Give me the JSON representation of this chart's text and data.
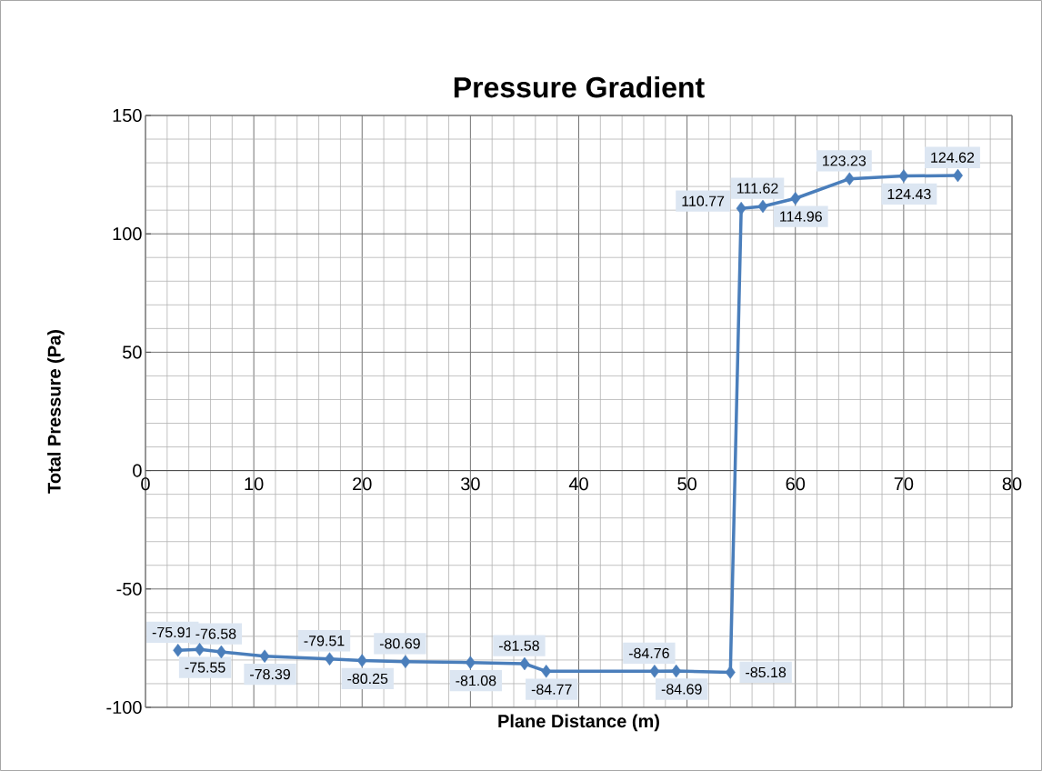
{
  "chart_data": {
    "type": "line",
    "title": "Pressure Gradient",
    "xlabel": "Plane Distance (m)",
    "ylabel": "Total Pressure (Pa)",
    "x": [
      3,
      5,
      7,
      11,
      17,
      20,
      24,
      30,
      35,
      37,
      47,
      49,
      54,
      55,
      57,
      60,
      65,
      70,
      75
    ],
    "values": [
      -75.91,
      -75.55,
      -76.58,
      -78.39,
      -79.51,
      -80.25,
      -80.69,
      -81.08,
      -81.58,
      -84.77,
      -84.76,
      -84.69,
      -85.18,
      110.77,
      111.62,
      114.96,
      123.23,
      124.43,
      124.62
    ],
    "color": "#4a7ebb",
    "marker": "diamond",
    "line_style": "solid",
    "data_labels": true,
    "grid": true,
    "xlim": [
      0,
      80
    ],
    "xticks": [
      0,
      10,
      20,
      30,
      40,
      50,
      60,
      70,
      80
    ],
    "ylim": [
      -100,
      150
    ],
    "yticks": [
      -100,
      -50,
      0,
      50,
      100,
      150
    ]
  }
}
